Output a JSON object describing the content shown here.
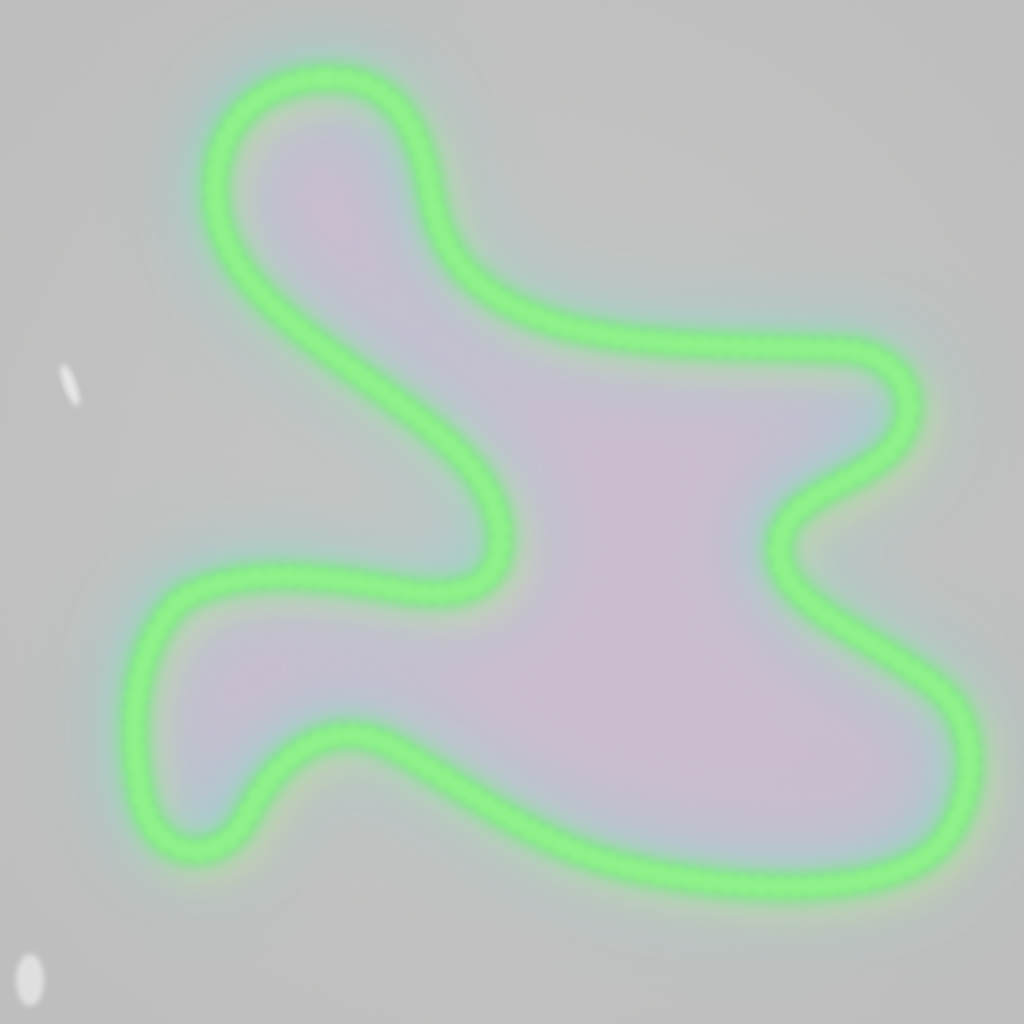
{
  "image": {
    "subject": "glowing-closed-loop",
    "palette": {
      "background": "#c2c2c2",
      "outline": "#6cf06e",
      "outline_bright": "#8ff58a",
      "halo_cyan": "#7ed9d2",
      "halo_yellow": "#e3e88a",
      "interior_pink": "#d8b9cf",
      "interior_lavender": "#c6bde0",
      "speck": "#eeeeee"
    }
  }
}
